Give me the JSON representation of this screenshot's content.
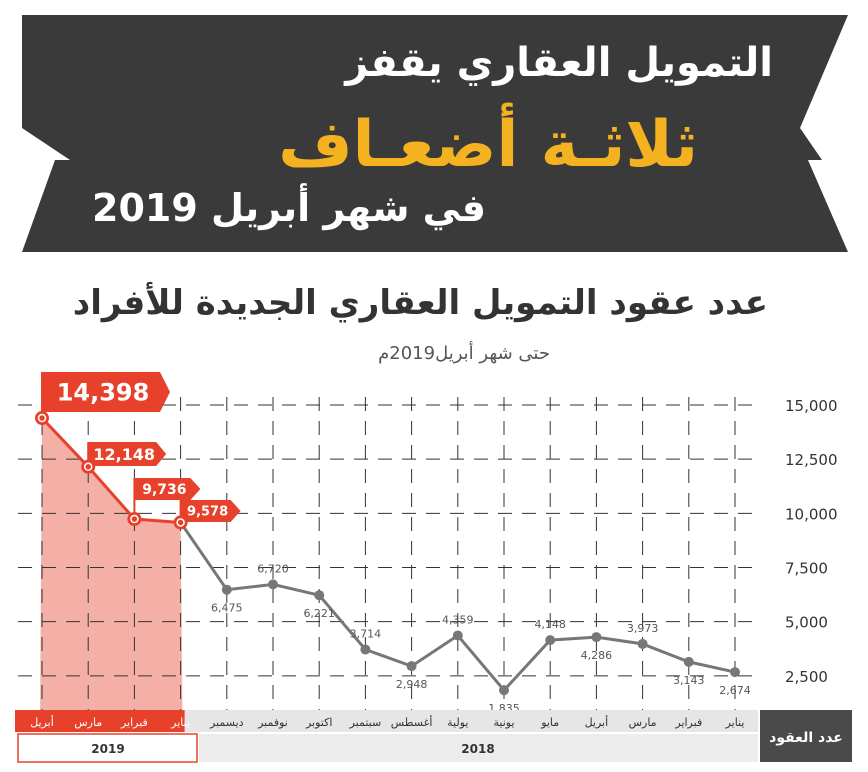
{
  "banner": {
    "line1": "التمويل العقاري يقفز",
    "line2": "ثلاثـة أضعـاف",
    "line3": "في شهر أبريل 2019",
    "colors": {
      "dark": "#3a3a3a",
      "accent": "#f5b220",
      "text": "#ffffff"
    }
  },
  "chart_data": {
    "type": "line",
    "title": "عدد عقود التمويل العقاري الجديدة للأفراد",
    "subtitle": "حتى شهر أبريل2019م",
    "ylabel": "عدد العقود",
    "ylim": [
      0,
      15000
    ],
    "yticks": [
      "15,000",
      "12,500",
      "10,000",
      "7,500",
      "5,000",
      "2,500"
    ],
    "categories": [
      "يناير",
      "فبراير",
      "مارس",
      "أبريل",
      "مايو",
      "يونية",
      "يولية",
      "أغسطس",
      "سبتمبر",
      "اكتوبر",
      "نوفمبر",
      "ديسمبر",
      "يناير",
      "فبراير",
      "مارس",
      "أبريل"
    ],
    "values": [
      2674,
      3143,
      3973,
      4286,
      4148,
      1835,
      4359,
      2948,
      3714,
      6221,
      6720,
      6475,
      9578,
      9736,
      12148,
      14398
    ],
    "value_labels": [
      "2,674",
      "3,143",
      "3,973",
      "4,286",
      "4,148",
      "1,835",
      "4,359",
      "2,948",
      "3,714",
      "6,221",
      "6,720",
      "6,475",
      "9,578",
      "9,736",
      "12,148",
      "14,398"
    ],
    "years": [
      {
        "label": "2018",
        "count": 12
      },
      {
        "label": "2019",
        "count": 4
      }
    ],
    "grid": true,
    "colors": {
      "line2018": "#777777",
      "line2019": "#e8412b",
      "highlight": "#f4b0a6",
      "axisbox": "#4a4a4a"
    }
  }
}
